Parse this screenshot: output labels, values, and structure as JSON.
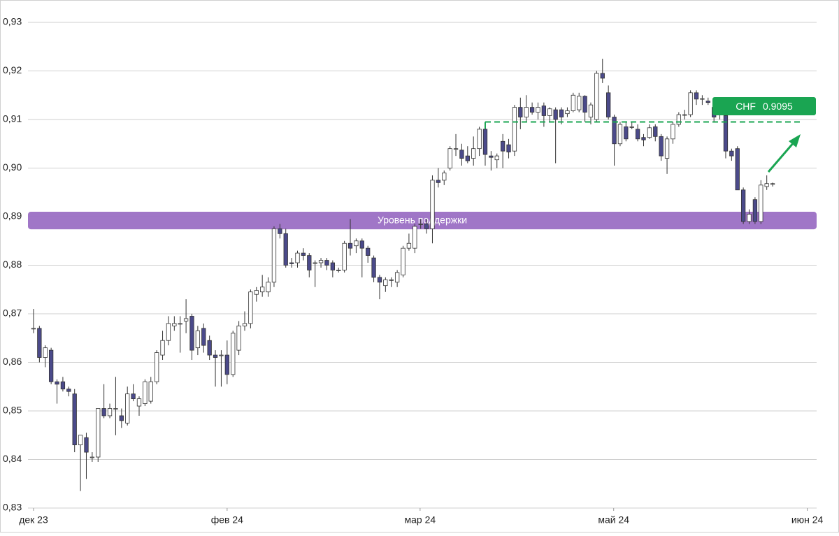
{
  "chart_data": {
    "type": "candlestick",
    "candles": [
      [
        0.867,
        0.871,
        0.866,
        0.867
      ],
      [
        0.867,
        0.8675,
        0.86,
        0.861
      ],
      [
        0.861,
        0.8635,
        0.859,
        0.863
      ],
      [
        0.8625,
        0.863,
        0.8555,
        0.856
      ],
      [
        0.856,
        0.8565,
        0.8515,
        0.8555
      ],
      [
        0.856,
        0.857,
        0.854,
        0.8545
      ],
      [
        0.8545,
        0.855,
        0.853,
        0.854
      ],
      [
        0.8535,
        0.8545,
        0.8415,
        0.843
      ],
      [
        0.843,
        0.845,
        0.8335,
        0.845
      ],
      [
        0.8445,
        0.8455,
        0.836,
        0.8415
      ],
      [
        0.8405,
        0.8415,
        0.8395,
        0.8405
      ],
      [
        0.8405,
        0.8505,
        0.8395,
        0.8505
      ],
      [
        0.8505,
        0.8555,
        0.8485,
        0.849
      ],
      [
        0.849,
        0.8515,
        0.8485,
        0.8505
      ],
      [
        0.8505,
        0.857,
        0.845,
        0.8505
      ],
      [
        0.849,
        0.8505,
        0.8465,
        0.848
      ],
      [
        0.8475,
        0.855,
        0.847,
        0.8535
      ],
      [
        0.8535,
        0.8555,
        0.852,
        0.8525
      ],
      [
        0.851,
        0.853,
        0.849,
        0.8525
      ],
      [
        0.8515,
        0.8565,
        0.851,
        0.856
      ],
      [
        0.852,
        0.857,
        0.8515,
        0.856
      ],
      [
        0.856,
        0.8625,
        0.8555,
        0.862
      ],
      [
        0.8615,
        0.8665,
        0.8605,
        0.8645
      ],
      [
        0.8645,
        0.8695,
        0.8635,
        0.868
      ],
      [
        0.8675,
        0.8695,
        0.8665,
        0.868
      ],
      [
        0.868,
        0.8695,
        0.862,
        0.868
      ],
      [
        0.8685,
        0.873,
        0.866,
        0.869
      ],
      [
        0.8695,
        0.87,
        0.8605,
        0.8625
      ],
      [
        0.863,
        0.8675,
        0.8615,
        0.8665
      ],
      [
        0.867,
        0.868,
        0.862,
        0.8635
      ],
      [
        0.8645,
        0.8655,
        0.8605,
        0.8615
      ],
      [
        0.8615,
        0.8625,
        0.855,
        0.861
      ],
      [
        0.8615,
        0.8625,
        0.855,
        0.8615
      ],
      [
        0.8615,
        0.8645,
        0.8555,
        0.8575
      ],
      [
        0.8575,
        0.8665,
        0.857,
        0.866
      ],
      [
        0.8625,
        0.8685,
        0.8615,
        0.8675
      ],
      [
        0.8675,
        0.8705,
        0.8665,
        0.868
      ],
      [
        0.868,
        0.875,
        0.867,
        0.8745
      ],
      [
        0.874,
        0.8755,
        0.8725,
        0.8748
      ],
      [
        0.8745,
        0.878,
        0.8735,
        0.8755
      ],
      [
        0.8745,
        0.8775,
        0.8735,
        0.8765
      ],
      [
        0.8765,
        0.888,
        0.8755,
        0.8875
      ],
      [
        0.8875,
        0.8885,
        0.8855,
        0.8865
      ],
      [
        0.8865,
        0.8875,
        0.8795,
        0.88
      ],
      [
        0.8805,
        0.8815,
        0.8795,
        0.8803
      ],
      [
        0.8805,
        0.883,
        0.8795,
        0.8825
      ],
      [
        0.8825,
        0.8835,
        0.881,
        0.882
      ],
      [
        0.882,
        0.8825,
        0.8775,
        0.879
      ],
      [
        0.8805,
        0.881,
        0.8755,
        0.8805
      ],
      [
        0.8805,
        0.8815,
        0.8795,
        0.881
      ],
      [
        0.881,
        0.8815,
        0.879,
        0.88
      ],
      [
        0.8805,
        0.881,
        0.8775,
        0.879
      ],
      [
        0.879,
        0.8795,
        0.8785,
        0.879
      ],
      [
        0.879,
        0.885,
        0.8785,
        0.8845
      ],
      [
        0.8845,
        0.8895,
        0.882,
        0.8835
      ],
      [
        0.884,
        0.8855,
        0.8825,
        0.885
      ],
      [
        0.885,
        0.8855,
        0.8775,
        0.8835
      ],
      [
        0.8835,
        0.884,
        0.8805,
        0.882
      ],
      [
        0.8815,
        0.882,
        0.8765,
        0.8775
      ],
      [
        0.8775,
        0.878,
        0.873,
        0.8765
      ],
      [
        0.8758,
        0.8775,
        0.8745,
        0.877
      ],
      [
        0.877,
        0.8775,
        0.8755,
        0.877
      ],
      [
        0.8765,
        0.879,
        0.8755,
        0.8785
      ],
      [
        0.878,
        0.884,
        0.8775,
        0.8835
      ],
      [
        0.8835,
        0.8865,
        0.883,
        0.8845
      ],
      [
        0.8835,
        0.8885,
        0.8825,
        0.888
      ],
      [
        0.8885,
        0.8895,
        0.8875,
        0.8885
      ],
      [
        0.8885,
        0.8895,
        0.8865,
        0.8875
      ],
      [
        0.8875,
        0.8985,
        0.8845,
        0.8975
      ],
      [
        0.8975,
        0.9,
        0.896,
        0.897
      ],
      [
        0.8975,
        0.8995,
        0.8965,
        0.899
      ],
      [
        0.9,
        0.9045,
        0.8995,
        0.904
      ],
      [
        0.904,
        0.907,
        0.9025,
        0.904
      ],
      [
        0.9037,
        0.905,
        0.9005,
        0.902
      ],
      [
        0.9025,
        0.9045,
        0.901,
        0.9015
      ],
      [
        0.902,
        0.9065,
        0.9005,
        0.904
      ],
      [
        0.904,
        0.9085,
        0.9025,
        0.908
      ],
      [
        0.908,
        0.9095,
        0.9005,
        0.9028
      ],
      [
        0.9025,
        0.9035,
        0.8995,
        0.9022
      ],
      [
        0.9017,
        0.903,
        0.9,
        0.9025
      ],
      [
        0.9055,
        0.907,
        0.9,
        0.9035
      ],
      [
        0.9048,
        0.906,
        0.902,
        0.9033
      ],
      [
        0.9035,
        0.913,
        0.9025,
        0.9125
      ],
      [
        0.9125,
        0.9145,
        0.908,
        0.9105
      ],
      [
        0.9105,
        0.915,
        0.9095,
        0.9125
      ],
      [
        0.9125,
        0.9135,
        0.911,
        0.9115
      ],
      [
        0.9115,
        0.9135,
        0.91,
        0.9125
      ],
      [
        0.9128,
        0.9135,
        0.9085,
        0.9108
      ],
      [
        0.9108,
        0.9125,
        0.9095,
        0.9122
      ],
      [
        0.912,
        0.9125,
        0.901,
        0.91
      ],
      [
        0.912,
        0.9125,
        0.909,
        0.9105
      ],
      [
        0.9112,
        0.9125,
        0.9105,
        0.9118
      ],
      [
        0.9118,
        0.9155,
        0.9115,
        0.915
      ],
      [
        0.912,
        0.9155,
        0.9115,
        0.9148
      ],
      [
        0.9148,
        0.915,
        0.9095,
        0.9115
      ],
      [
        0.9105,
        0.9135,
        0.909,
        0.913
      ],
      [
        0.91,
        0.92,
        0.9095,
        0.9195
      ],
      [
        0.9195,
        0.9225,
        0.9175,
        0.9185
      ],
      [
        0.9155,
        0.917,
        0.91,
        0.9105
      ],
      [
        0.9105,
        0.911,
        0.9005,
        0.905
      ],
      [
        0.905,
        0.9095,
        0.9045,
        0.909
      ],
      [
        0.9085,
        0.9095,
        0.9055,
        0.906
      ],
      [
        0.9085,
        0.9095,
        0.908,
        0.9085
      ],
      [
        0.908,
        0.909,
        0.9055,
        0.906
      ],
      [
        0.9063,
        0.907,
        0.9045,
        0.9058
      ],
      [
        0.9063,
        0.909,
        0.906,
        0.9083
      ],
      [
        0.9085,
        0.909,
        0.9055,
        0.9065
      ],
      [
        0.9065,
        0.907,
        0.9015,
        0.9025
      ],
      [
        0.902,
        0.9065,
        0.8988,
        0.906
      ],
      [
        0.906,
        0.9095,
        0.905,
        0.909
      ],
      [
        0.909,
        0.9115,
        0.9085,
        0.911
      ],
      [
        0.911,
        0.912,
        0.91,
        0.911
      ],
      [
        0.911,
        0.916,
        0.9105,
        0.9155
      ],
      [
        0.9155,
        0.916,
        0.913,
        0.9142
      ],
      [
        0.9143,
        0.915,
        0.913,
        0.9143
      ],
      [
        0.9138,
        0.9145,
        0.913,
        0.9135
      ],
      [
        0.9125,
        0.913,
        0.9095,
        0.9105
      ],
      [
        0.9118,
        0.9125,
        0.91,
        0.9118
      ],
      [
        0.9108,
        0.911,
        0.902,
        0.9035
      ],
      [
        0.9035,
        0.904,
        0.9015,
        0.9025
      ],
      [
        0.904,
        0.9045,
        0.8955,
        0.8955
      ],
      [
        0.8955,
        0.896,
        0.8885,
        0.889
      ],
      [
        0.889,
        0.8915,
        0.8885,
        0.8905
      ],
      [
        0.8935,
        0.894,
        0.8885,
        0.889
      ],
      [
        0.889,
        0.8975,
        0.8885,
        0.8965
      ],
      [
        0.8962,
        0.8985,
        0.8955,
        0.8968
      ],
      [
        0.8968,
        0.897,
        0.8962,
        0.8968
      ]
    ],
    "up_color": "#ffffff",
    "down_color": "#4b4a8a",
    "xlim": [
      -0.95,
      133.5
    ],
    "xticks": [
      {
        "value": 0,
        "label": "дек 23"
      },
      {
        "value": 33,
        "label": "фев 24"
      },
      {
        "value": 65.9,
        "label": "мар 24"
      },
      {
        "value": 98.9,
        "label": "май 24"
      },
      {
        "value": 131.9,
        "label": "июн 24"
      }
    ],
    "ylim": [
      0.83,
      0.93
    ],
    "yticks": [
      {
        "value": 0.83,
        "label": "0,83"
      },
      {
        "value": 0.84,
        "label": "0,84"
      },
      {
        "value": 0.85,
        "label": "0,85"
      },
      {
        "value": 0.86,
        "label": "0,86"
      },
      {
        "value": 0.87,
        "label": "0,87"
      },
      {
        "value": 0.88,
        "label": "0,88"
      },
      {
        "value": 0.89,
        "label": "0,89"
      },
      {
        "value": 0.9,
        "label": "0,90"
      },
      {
        "value": 0.91,
        "label": "0,91"
      },
      {
        "value": 0.92,
        "label": "0,92"
      },
      {
        "value": 0.93,
        "label": "0,93"
      }
    ],
    "grid": true,
    "support_band": {
      "label": "Уровень поддержки",
      "from": 0.8874,
      "to": 0.891,
      "color": "#9b6fc4"
    },
    "level": {
      "label": "CHF",
      "value": 0.9095,
      "from": 77,
      "to": 131,
      "color": "#1aa552"
    }
  }
}
